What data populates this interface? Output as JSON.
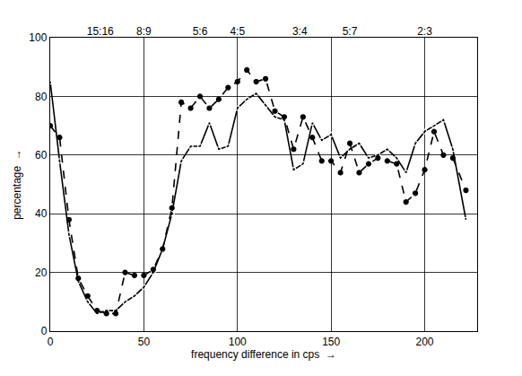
{
  "chart_data": {
    "type": "line",
    "x_label": "frequency difference in cps  →",
    "y_label": "percentage  →",
    "x": [
      0,
      5,
      10,
      15,
      20,
      25,
      30,
      35,
      40,
      45,
      50,
      55,
      60,
      65,
      70,
      75,
      80,
      85,
      90,
      95,
      100,
      105,
      110,
      115,
      120,
      125,
      130,
      135,
      140,
      145,
      150,
      155,
      160,
      165,
      170,
      175,
      180,
      185,
      190,
      195,
      200,
      205,
      210,
      215,
      222
    ],
    "series": [
      {
        "color": "#000000",
        "marker": "circle-open",
        "line_style": "solid",
        "values": [
          85,
          58,
          33,
          17,
          10,
          6,
          7,
          7,
          10,
          12,
          15,
          20,
          28,
          40,
          58,
          63,
          63,
          71,
          62,
          63,
          76,
          79,
          81,
          77,
          73,
          72,
          55,
          57,
          71,
          65,
          67,
          59,
          62,
          64,
          59,
          60,
          62,
          59,
          54,
          64,
          68,
          70,
          72,
          62,
          38
        ]
      },
      {
        "color": "#000000",
        "marker": "circle",
        "line_style": "dash",
        "values": [
          70,
          66,
          38,
          18,
          12,
          7,
          6,
          6,
          20,
          19,
          19,
          21,
          28,
          42,
          78,
          76,
          80,
          76,
          79,
          83,
          85,
          89,
          85,
          86,
          75,
          73,
          62,
          73,
          66,
          58,
          58,
          54,
          64,
          54,
          57,
          59,
          58,
          57,
          44,
          47,
          55,
          68,
          60,
          59,
          48
        ]
      }
    ],
    "xlim": [
      0,
      228
    ],
    "xticks": [
      0,
      50,
      100,
      150,
      200
    ],
    "x2ticks": [
      {
        "value": 26.7,
        "label": "15:16"
      },
      {
        "value": 50,
        "label": "8:9"
      },
      {
        "value": 80,
        "label": "5:6"
      },
      {
        "value": 100,
        "label": "4:5"
      },
      {
        "value": 133.3,
        "label": "3:4"
      },
      {
        "value": 160,
        "label": "5:7"
      },
      {
        "value": 200,
        "label": "2:3"
      }
    ],
    "ylim": [
      0,
      100
    ],
    "yticks": [
      0,
      20,
      40,
      60,
      80,
      100
    ],
    "grid": true
  }
}
